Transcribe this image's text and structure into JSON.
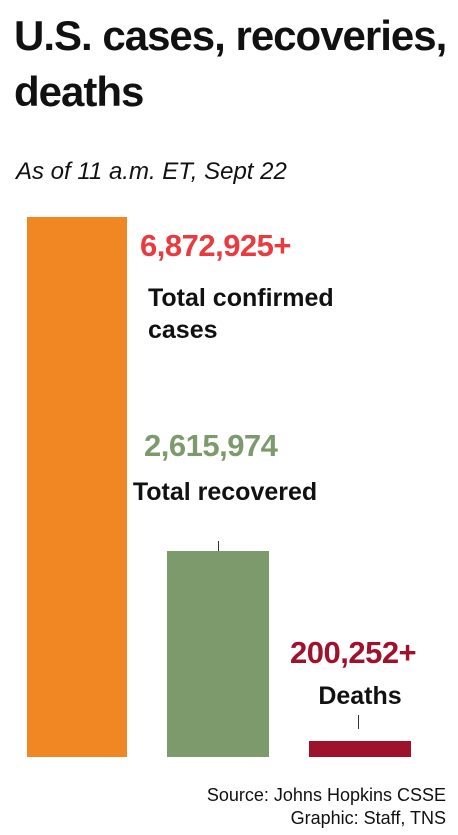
{
  "chart_data": {
    "type": "bar",
    "title": "U.S. cases, recoveries, deaths",
    "subtitle": "As of 11 a.m. ET, Sept 22",
    "categories": [
      "Total confirmed cases",
      "Total recovered",
      "Deaths"
    ],
    "values": [
      6872925,
      2615974,
      200252
    ],
    "value_labels": [
      "6,872,925+",
      "2,615,974",
      "200,252+"
    ],
    "colors": [
      "#f08722",
      "#7d9a6d",
      "#a0112b"
    ],
    "label_colors": [
      "#ea3a3f",
      "#7d9a6d",
      "#a0112b"
    ],
    "source": "Source: Johns Hopkins CSSE",
    "credit": "Graphic: Staff, TNS"
  }
}
